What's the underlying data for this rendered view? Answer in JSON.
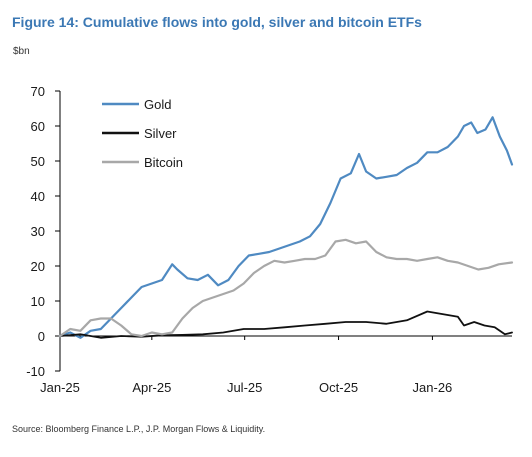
{
  "title": "Figure 14: Cumulative flows into gold, silver and bitcoin ETFs",
  "unit": "$bn",
  "source": "Source: Bloomberg Finance L.P., J.P. Morgan Flows & Liquidity.",
  "chart_data": {
    "type": "line",
    "title": "Figure 14: Cumulative flows into gold, silver and bitcoin ETFs",
    "ylabel": "$bn",
    "xlabel": "",
    "ylim": [
      -10,
      70
    ],
    "xlim": [
      "2025-01-01",
      "2026-03-20"
    ],
    "y_ticks": [
      -10,
      0,
      10,
      20,
      30,
      40,
      50,
      60,
      70
    ],
    "x_ticks": [
      {
        "label": "Jan-25",
        "date": "2025-01-01"
      },
      {
        "label": "Apr-25",
        "date": "2025-04-01"
      },
      {
        "label": "Jul-25",
        "date": "2025-07-01"
      },
      {
        "label": "Oct-25",
        "date": "2025-10-01"
      },
      {
        "label": "Jan-26",
        "date": "2026-01-01"
      }
    ],
    "legend_position": "top-left",
    "grid": false,
    "series": [
      {
        "name": "Gold",
        "color": "#4f8ac2",
        "points": [
          [
            "2025-01-01",
            0
          ],
          [
            "2025-01-11",
            1
          ],
          [
            "2025-01-21",
            -0.5
          ],
          [
            "2025-01-31",
            1.5
          ],
          [
            "2025-02-10",
            2
          ],
          [
            "2025-02-20",
            5
          ],
          [
            "2025-03-02",
            8
          ],
          [
            "2025-03-12",
            11
          ],
          [
            "2025-03-22",
            14
          ],
          [
            "2025-04-01",
            15
          ],
          [
            "2025-04-11",
            16
          ],
          [
            "2025-04-21",
            20.5
          ],
          [
            "2025-04-26",
            19
          ],
          [
            "2025-05-06",
            16.5
          ],
          [
            "2025-05-16",
            16
          ],
          [
            "2025-05-26",
            17.5
          ],
          [
            "2025-06-05",
            14.5
          ],
          [
            "2025-06-15",
            16
          ],
          [
            "2025-06-25",
            20
          ],
          [
            "2025-07-05",
            23
          ],
          [
            "2025-07-15",
            23.5
          ],
          [
            "2025-07-25",
            24
          ],
          [
            "2025-08-04",
            25
          ],
          [
            "2025-08-14",
            26
          ],
          [
            "2025-08-24",
            27
          ],
          [
            "2025-09-03",
            28.5
          ],
          [
            "2025-09-13",
            32
          ],
          [
            "2025-09-23",
            38
          ],
          [
            "2025-10-03",
            45
          ],
          [
            "2025-10-13",
            46.5
          ],
          [
            "2025-10-21",
            52
          ],
          [
            "2025-10-28",
            47
          ],
          [
            "2025-11-07",
            45
          ],
          [
            "2025-11-17",
            45.5
          ],
          [
            "2025-11-27",
            46
          ],
          [
            "2025-12-07",
            48
          ],
          [
            "2025-12-17",
            49.5
          ],
          [
            "2025-12-27",
            52.5
          ],
          [
            "2026-01-06",
            52.5
          ],
          [
            "2026-01-16",
            54
          ],
          [
            "2026-01-26",
            57
          ],
          [
            "2026-02-01",
            60
          ],
          [
            "2026-02-08",
            61
          ],
          [
            "2026-02-14",
            58
          ],
          [
            "2026-02-22",
            59
          ],
          [
            "2026-03-01",
            62.5
          ],
          [
            "2026-03-08",
            57
          ],
          [
            "2026-03-15",
            53
          ],
          [
            "2026-03-20",
            49
          ]
        ]
      },
      {
        "name": "Silver",
        "color": "#111111",
        "points": [
          [
            "2025-01-01",
            0
          ],
          [
            "2025-01-21",
            0.5
          ],
          [
            "2025-02-10",
            -0.5
          ],
          [
            "2025-03-02",
            0
          ],
          [
            "2025-03-22",
            -0.2
          ],
          [
            "2025-04-11",
            0.2
          ],
          [
            "2025-05-01",
            0.3
          ],
          [
            "2025-05-21",
            0.5
          ],
          [
            "2025-06-10",
            1
          ],
          [
            "2025-06-30",
            2
          ],
          [
            "2025-07-20",
            2
          ],
          [
            "2025-08-09",
            2.5
          ],
          [
            "2025-08-29",
            3
          ],
          [
            "2025-09-18",
            3.5
          ],
          [
            "2025-10-08",
            4
          ],
          [
            "2025-10-28",
            4
          ],
          [
            "2025-11-17",
            3.5
          ],
          [
            "2025-12-07",
            4.5
          ],
          [
            "2025-12-27",
            7
          ],
          [
            "2026-01-16",
            6
          ],
          [
            "2026-01-26",
            5.5
          ],
          [
            "2026-02-01",
            3
          ],
          [
            "2026-02-11",
            4
          ],
          [
            "2026-02-21",
            3
          ],
          [
            "2026-03-03",
            2.5
          ],
          [
            "2026-03-13",
            0.5
          ],
          [
            "2026-03-20",
            1
          ]
        ]
      },
      {
        "name": "Bitcoin",
        "color": "#a8a8a8",
        "points": [
          [
            "2025-01-01",
            0
          ],
          [
            "2025-01-11",
            2
          ],
          [
            "2025-01-21",
            1.5
          ],
          [
            "2025-01-31",
            4.5
          ],
          [
            "2025-02-10",
            5
          ],
          [
            "2025-02-20",
            5
          ],
          [
            "2025-03-02",
            3
          ],
          [
            "2025-03-12",
            0.5
          ],
          [
            "2025-03-22",
            0
          ],
          [
            "2025-04-01",
            1
          ],
          [
            "2025-04-11",
            0.5
          ],
          [
            "2025-04-21",
            1
          ],
          [
            "2025-05-01",
            5
          ],
          [
            "2025-05-11",
            8
          ],
          [
            "2025-05-21",
            10
          ],
          [
            "2025-05-31",
            11
          ],
          [
            "2025-06-10",
            12
          ],
          [
            "2025-06-20",
            13
          ],
          [
            "2025-06-30",
            15
          ],
          [
            "2025-07-10",
            18
          ],
          [
            "2025-07-20",
            20
          ],
          [
            "2025-07-30",
            21.5
          ],
          [
            "2025-08-09",
            21
          ],
          [
            "2025-08-19",
            21.5
          ],
          [
            "2025-08-29",
            22
          ],
          [
            "2025-09-08",
            22
          ],
          [
            "2025-09-18",
            23
          ],
          [
            "2025-09-28",
            27
          ],
          [
            "2025-10-08",
            27.5
          ],
          [
            "2025-10-18",
            26.5
          ],
          [
            "2025-10-28",
            27
          ],
          [
            "2025-11-07",
            24
          ],
          [
            "2025-11-17",
            22.5
          ],
          [
            "2025-11-27",
            22
          ],
          [
            "2025-12-07",
            22
          ],
          [
            "2025-12-17",
            21.5
          ],
          [
            "2025-12-27",
            22
          ],
          [
            "2026-01-06",
            22.5
          ],
          [
            "2026-01-16",
            21.5
          ],
          [
            "2026-01-26",
            21
          ],
          [
            "2026-02-05",
            20
          ],
          [
            "2026-02-15",
            19
          ],
          [
            "2026-02-25",
            19.5
          ],
          [
            "2026-03-07",
            20.5
          ],
          [
            "2026-03-20",
            21
          ]
        ]
      }
    ]
  }
}
